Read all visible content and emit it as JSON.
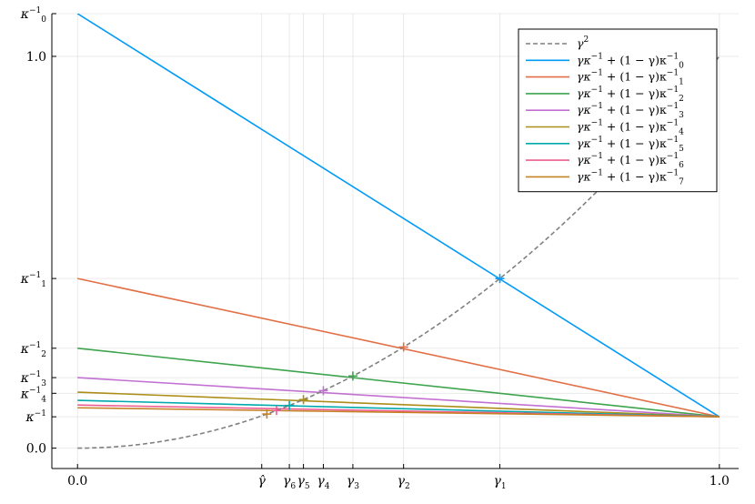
{
  "chart_data": {
    "type": "line",
    "title": "",
    "xlabel": "",
    "ylabel": "",
    "xlim": [
      -0.04,
      1.03
    ],
    "ylim": [
      -0.052,
      1.109
    ],
    "grid": true,
    "legend_position": "top-right",
    "x_ticks": [
      {
        "x": 0.0,
        "label": "0.0"
      },
      {
        "x": 0.287,
        "label": "γ̂"
      },
      {
        "x": 0.33,
        "label": "γ",
        "sub": "6"
      },
      {
        "x": 0.352,
        "label": "γ",
        "sub": "5"
      },
      {
        "x": 0.383,
        "label": "γ",
        "sub": "4"
      },
      {
        "x": 0.429,
        "label": "γ",
        "sub": "3"
      },
      {
        "x": 0.508,
        "label": "γ",
        "sub": "2"
      },
      {
        "x": 0.658,
        "label": "γ",
        "sub": "1"
      },
      {
        "x": 1.0,
        "label": "1.0"
      }
    ],
    "y_ticks": [
      {
        "y": 0.0,
        "label": "0.0"
      },
      {
        "y": 0.08,
        "label": "κ",
        "sup": "−1"
      },
      {
        "y": 0.14,
        "label": "κ",
        "sub": "4",
        "sup": "−1"
      },
      {
        "y": 0.18,
        "label": "κ",
        "sub": "3",
        "sup": "−1"
      },
      {
        "y": 0.255,
        "label": "κ",
        "sub": "2",
        "sup": "−1"
      },
      {
        "y": 0.433,
        "label": "κ",
        "sub": "1",
        "sup": "−1"
      },
      {
        "y": 1.0,
        "label": "1.0"
      },
      {
        "y": 1.109,
        "label": "κ",
        "sub": "0",
        "sup": "−1"
      }
    ],
    "curve": {
      "name": "γ^2",
      "color": "#808080",
      "dashed": true,
      "samples": 60
    },
    "series": [
      {
        "name_sub": "0",
        "k0": 1.109,
        "kinf": 0.08,
        "color": "#009af9",
        "marker_x": 0.658
      },
      {
        "name_sub": "1",
        "k0": 0.433,
        "kinf": 0.08,
        "color": "#e26f46",
        "marker_x": 0.508
      },
      {
        "name_sub": "2",
        "k0": 0.255,
        "kinf": 0.08,
        "color": "#3da44d",
        "marker_x": 0.429
      },
      {
        "name_sub": "3",
        "k0": 0.18,
        "kinf": 0.08,
        "color": "#c271d2",
        "marker_x": 0.383
      },
      {
        "name_sub": "4",
        "k0": 0.143,
        "kinf": 0.08,
        "color": "#ac8d18",
        "marker_x": 0.352
      },
      {
        "name_sub": "5",
        "k0": 0.122,
        "kinf": 0.08,
        "color": "#00a9ad",
        "marker_x": 0.33
      },
      {
        "name_sub": "6",
        "k0": 0.11,
        "kinf": 0.08,
        "color": "#ed5d92",
        "marker_x": 0.31
      },
      {
        "name_sub": "7",
        "k0": 0.103,
        "kinf": 0.08,
        "color": "#c68125",
        "marker_x": 0.295
      }
    ],
    "legend": {
      "curve_label": "γ",
      "curve_sup": "2",
      "series_label_parts": [
        "γκ",
        "−1",
        " + (1 − γ)κ",
        "−1"
      ]
    }
  }
}
